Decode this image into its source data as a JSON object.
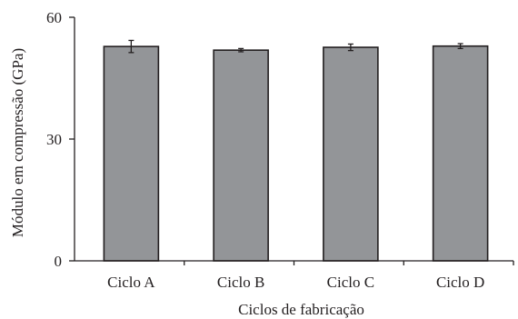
{
  "chart_data": {
    "type": "bar",
    "categories": [
      "Ciclo A",
      "Ciclo B",
      "Ciclo C",
      "Ciclo D"
    ],
    "values": [
      52.8,
      51.9,
      52.6,
      52.9
    ],
    "errors": [
      1.5,
      0.4,
      0.8,
      0.6
    ],
    "xlabel": "Ciclos de fabricação",
    "ylabel": "Módulo em compressão (GPa)",
    "ylim": [
      0,
      60
    ],
    "yticks": [
      0,
      30,
      60
    ],
    "grid": false,
    "colors": {
      "bar_fill": "#939598",
      "bar_stroke": "#231f20",
      "axis": "#231f20"
    }
  }
}
